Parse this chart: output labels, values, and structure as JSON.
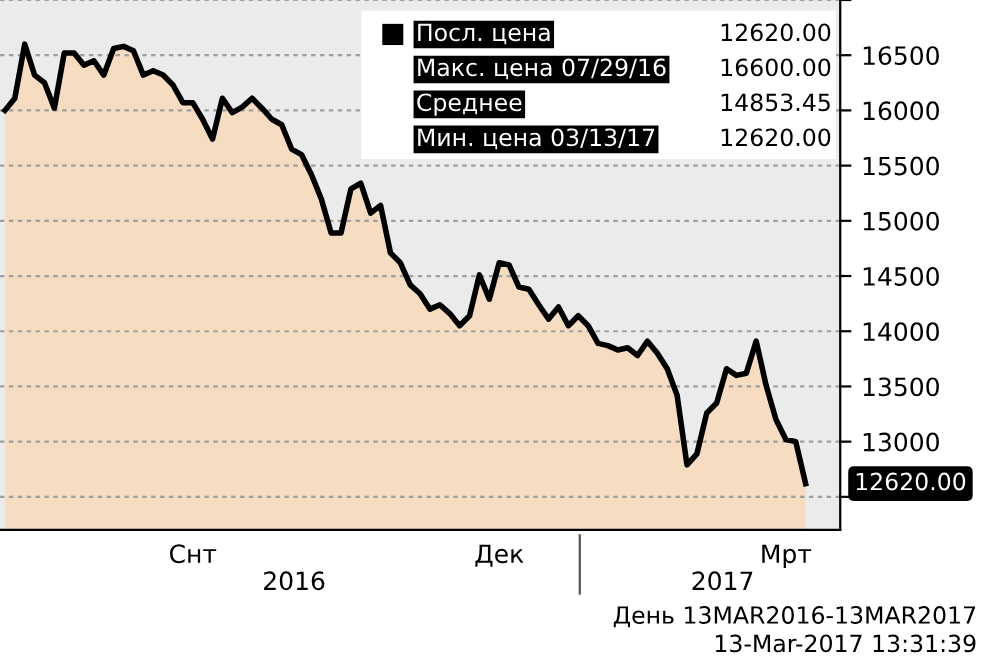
{
  "chart_data": {
    "type": "area",
    "categories": [
      null,
      null,
      null,
      null,
      null,
      null,
      null,
      null,
      null,
      null,
      null,
      null,
      null,
      null,
      null,
      null,
      null,
      null,
      null,
      "Снт",
      null,
      null,
      null,
      null,
      null,
      null,
      null,
      null,
      null,
      null,
      null,
      null,
      null,
      null,
      null,
      null,
      null,
      null,
      null,
      null,
      null,
      null,
      null,
      null,
      null,
      null,
      null,
      null,
      null,
      null,
      "Дек",
      null,
      null,
      null,
      null,
      null,
      null,
      null,
      null,
      null,
      null,
      null,
      null,
      null,
      null,
      null,
      null,
      null,
      null,
      null,
      null,
      null,
      null,
      null,
      null,
      null,
      null,
      null,
      null,
      "Мрт",
      null,
      null
    ],
    "series": [
      {
        "color": "#000000",
        "values": [
          16000,
          16110,
          16600,
          16320,
          16250,
          16020,
          16520,
          16520,
          16410,
          16450,
          16320,
          16560,
          16580,
          16540,
          16320,
          16360,
          16320,
          16230,
          16070,
          16070,
          15920,
          15740,
          16110,
          15980,
          16030,
          16110,
          16020,
          15920,
          15870,
          15650,
          15600,
          15420,
          15200,
          14890,
          14890,
          15290,
          15340,
          15070,
          15140,
          14710,
          14620,
          14420,
          14340,
          14200,
          14240,
          14160,
          14050,
          14140,
          14510,
          14290,
          14620,
          14600,
          14400,
          14380,
          14240,
          14110,
          14220,
          14050,
          14140,
          14050,
          13890,
          13870,
          13830,
          13850,
          13780,
          13910,
          13800,
          13660,
          13420,
          12790,
          12890,
          13260,
          13350,
          13660,
          13600,
          13620,
          13910,
          13510,
          13200,
          13020,
          13000,
          12620
        ]
      }
    ],
    "ylim": [
      12200,
      17000
    ],
    "yticks": [
      {
        "value": 12500,
        "label": null
      },
      13000,
      13500,
      14000,
      14500,
      15000,
      15500,
      16000,
      16500,
      {
        "value": 17000,
        "label": null
      }
    ],
    "grid": "y",
    "annotations": [
      "Посл. цена",
      "12620.00",
      "Макс. цена 07/29/16",
      "16600.00",
      "Среднее",
      "14853.45",
      "Мин. цена 03/13/17",
      "12620.00",
      "12620.00",
      "2016",
      "2017",
      "День 13MAR2016-13MAR2017",
      "13-Mar-2017 13:31:39"
    ]
  }
}
